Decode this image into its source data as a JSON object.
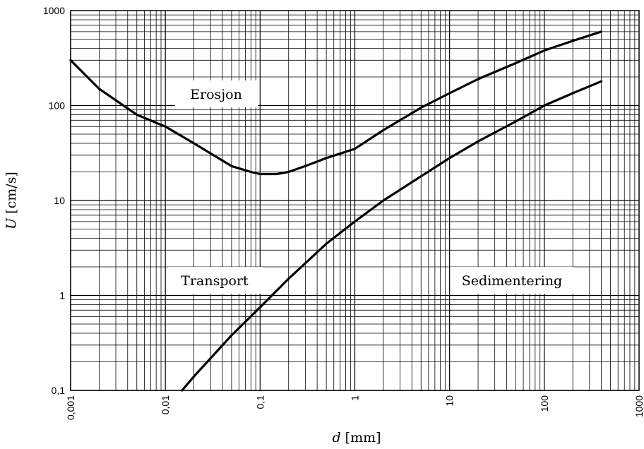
{
  "chart_data": {
    "type": "line",
    "xscale": "log",
    "yscale": "log",
    "xlim": [
      0.001,
      1000
    ],
    "ylim": [
      0.1,
      1000
    ],
    "grid": true,
    "xlabel_var": "d",
    "xlabel_unit": "[mm]",
    "ylabel_var": "U",
    "ylabel_unit": "[cm/s]",
    "x_ticks": [
      "0,001",
      "0,01",
      "0,1",
      "1",
      "10",
      "100",
      "1000"
    ],
    "y_ticks": [
      "0,1",
      "1",
      "10",
      "100",
      "1000"
    ],
    "series": [
      {
        "points": [
          [
            0.001,
            300
          ],
          [
            0.002,
            150
          ],
          [
            0.005,
            80
          ],
          [
            0.01,
            60
          ],
          [
            0.02,
            40
          ],
          [
            0.05,
            23
          ],
          [
            0.08,
            20
          ],
          [
            0.1,
            19
          ],
          [
            0.15,
            19
          ],
          [
            0.2,
            20
          ],
          [
            0.3,
            23
          ],
          [
            0.5,
            28
          ],
          [
            1,
            35
          ],
          [
            2,
            55
          ],
          [
            5,
            95
          ],
          [
            10,
            135
          ],
          [
            20,
            190
          ],
          [
            50,
            280
          ],
          [
            100,
            380
          ],
          [
            200,
            480
          ],
          [
            400,
            600
          ]
        ]
      },
      {
        "points": [
          [
            0.015,
            0.1
          ],
          [
            0.02,
            0.14
          ],
          [
            0.05,
            0.38
          ],
          [
            0.1,
            0.75
          ],
          [
            0.2,
            1.5
          ],
          [
            0.5,
            3.5
          ],
          [
            1,
            6
          ],
          [
            2,
            10
          ],
          [
            5,
            18
          ],
          [
            10,
            28
          ],
          [
            20,
            42
          ],
          [
            50,
            68
          ],
          [
            100,
            100
          ],
          [
            200,
            135
          ],
          [
            400,
            180
          ]
        ]
      }
    ],
    "annotations": [
      "Erosjon",
      "Transport",
      "Sedimentering"
    ]
  }
}
